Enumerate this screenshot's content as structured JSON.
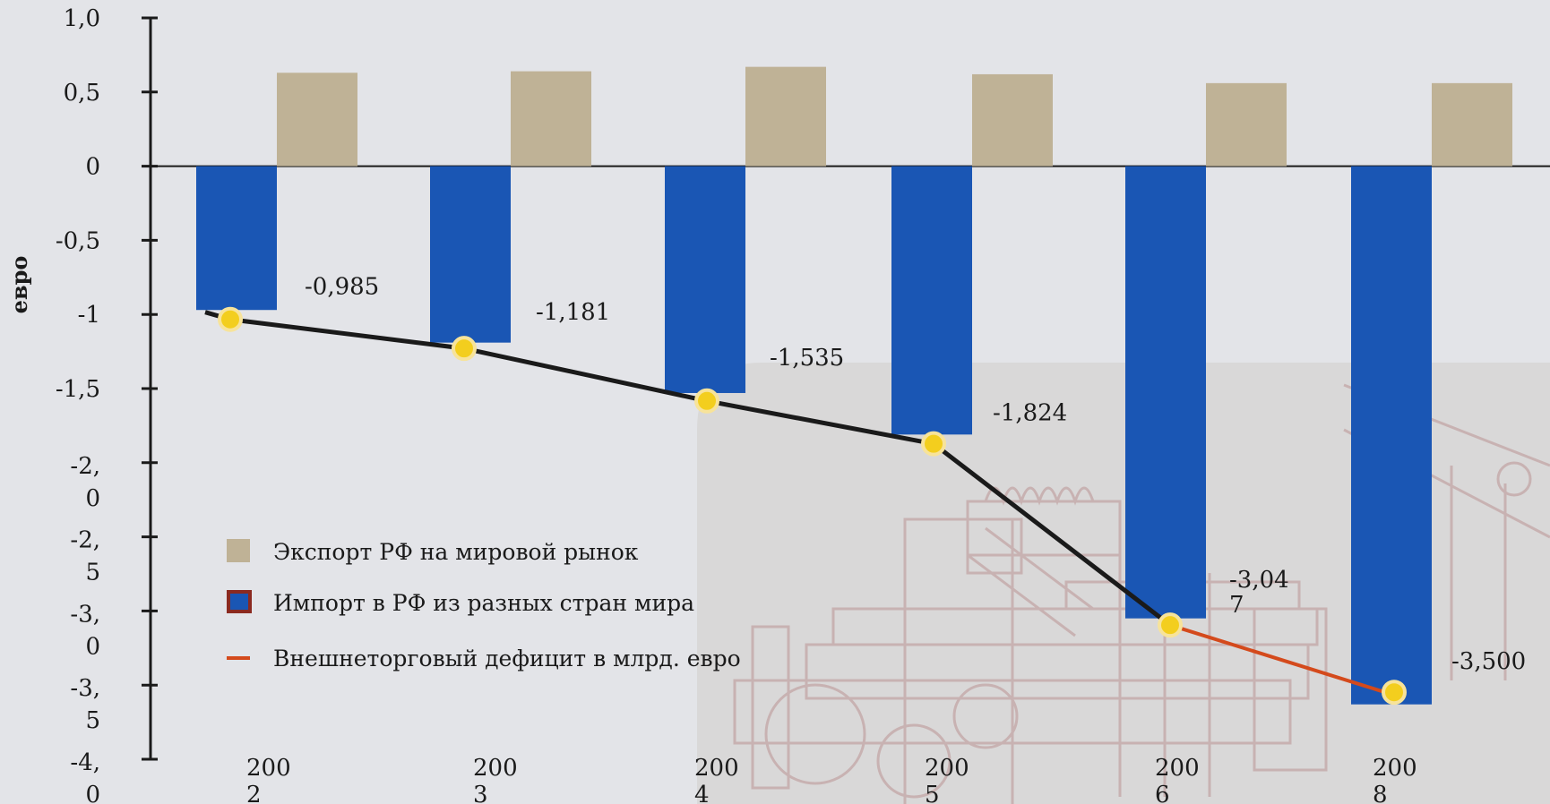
{
  "chart_data": {
    "type": "bar",
    "categories": [
      "2002",
      "2003",
      "2004",
      "2005",
      "2006",
      "2008"
    ],
    "ylabel": "евро",
    "ylim": [
      -4.0,
      1.0
    ],
    "yticks": [
      {
        "value": 1.0,
        "label": [
          "1,0"
        ]
      },
      {
        "value": 0.5,
        "label": [
          "0,5"
        ]
      },
      {
        "value": 0,
        "label": [
          "0"
        ]
      },
      {
        "value": -0.5,
        "label": [
          "-0,5"
        ]
      },
      {
        "value": -1.0,
        "label": [
          "-1"
        ]
      },
      {
        "value": -1.5,
        "label": [
          "-1,5"
        ]
      },
      {
        "value": -2.0,
        "label": [
          "-2,",
          "0"
        ]
      },
      {
        "value": -2.5,
        "label": [
          "-2,",
          "5"
        ]
      },
      {
        "value": -3.0,
        "label": [
          "-3,",
          "0"
        ]
      },
      {
        "value": -3.5,
        "label": [
          "-3,",
          "5"
        ]
      },
      {
        "value": -4.0,
        "label": [
          "-4,",
          "0"
        ]
      }
    ],
    "xtick_labels": [
      [
        "200",
        "2"
      ],
      [
        "200",
        "3"
      ],
      [
        "200",
        "4"
      ],
      [
        "200",
        "5"
      ],
      [
        "200",
        "6"
      ],
      [
        "200",
        "8"
      ]
    ],
    "series": [
      {
        "name": "Экспорт РФ на мировой рынок",
        "type": "bar",
        "color": "#bfb296",
        "values": [
          0.63,
          0.64,
          0.67,
          0.62,
          0.56,
          0.56
        ]
      },
      {
        "name": "Импорт в РФ из разных стран мира",
        "type": "bar",
        "color": "#1a56b4",
        "values": [
          -0.97,
          -1.19,
          -1.53,
          -1.81,
          -3.05,
          -3.63
        ]
      },
      {
        "name": "Внешнеторговый дефицит в млрд. евро",
        "type": "line",
        "color": "#1a1a1a",
        "highlight_color": "#d44a1c",
        "values": [
          -0.985,
          -1.181,
          -1.535,
          -1.824,
          -3.047,
          -3.5
        ],
        "point_labels": [
          [
            "-0,985"
          ],
          [
            "-1,181"
          ],
          [
            "-1,535"
          ],
          [
            "-1,824"
          ],
          [
            "-3,04",
            "7"
          ],
          [
            "-3,500"
          ]
        ]
      }
    ],
    "legend_position": "lower-left",
    "grid": false
  }
}
